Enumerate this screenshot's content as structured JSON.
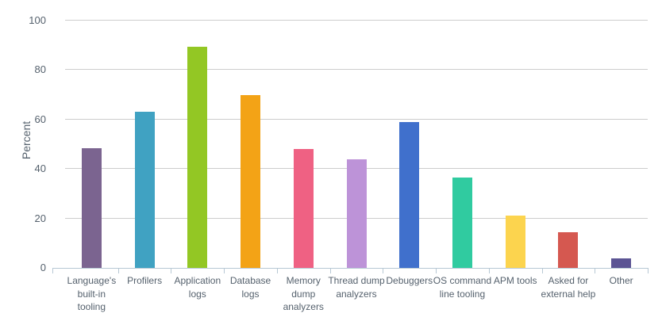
{
  "chart_data": {
    "type": "bar",
    "title": "",
    "ylabel": "Percent",
    "xlabel": "",
    "ylim": [
      0,
      100
    ],
    "yticks": [
      0,
      20,
      40,
      60,
      80,
      100
    ],
    "grid": true,
    "legend": false,
    "categories": [
      "Language's built-in tooling",
      "Profilers",
      "Application logs",
      "Database logs",
      "Memory dump analyzers",
      "Thread dump analyzers",
      "Debuggers",
      "OS command line tooling",
      "APM tools",
      "Asked for external help",
      "Other"
    ],
    "values": [
      48.5,
      63,
      89.5,
      70,
      48,
      44,
      59,
      36.5,
      21,
      14.5,
      4
    ],
    "bar_colors": [
      "#7b6490",
      "#40a2c2",
      "#93c724",
      "#f3a316",
      "#ef6183",
      "#bd93d8",
      "#4070cc",
      "#30cba0",
      "#fcd44e",
      "#d55850",
      "#5b5494"
    ],
    "label_lines": [
      [
        "Language's",
        "built-in",
        "tooling"
      ],
      [
        "Profilers"
      ],
      [
        "Application",
        "logs"
      ],
      [
        "Database",
        "logs"
      ],
      [
        "Memory",
        "dump",
        "analyzers"
      ],
      [
        "Thread dump",
        "analyzers"
      ],
      [
        "Debuggers"
      ],
      [
        "OS command",
        "line tooling"
      ],
      [
        "APM tools"
      ],
      [
        "Asked for",
        "external help"
      ],
      [
        "Other"
      ]
    ]
  },
  "style": {
    "text_color": "#55616d",
    "grid_color": "#cdcdcd",
    "axis_color": "#b7c8d4",
    "background": "#ffffff"
  }
}
